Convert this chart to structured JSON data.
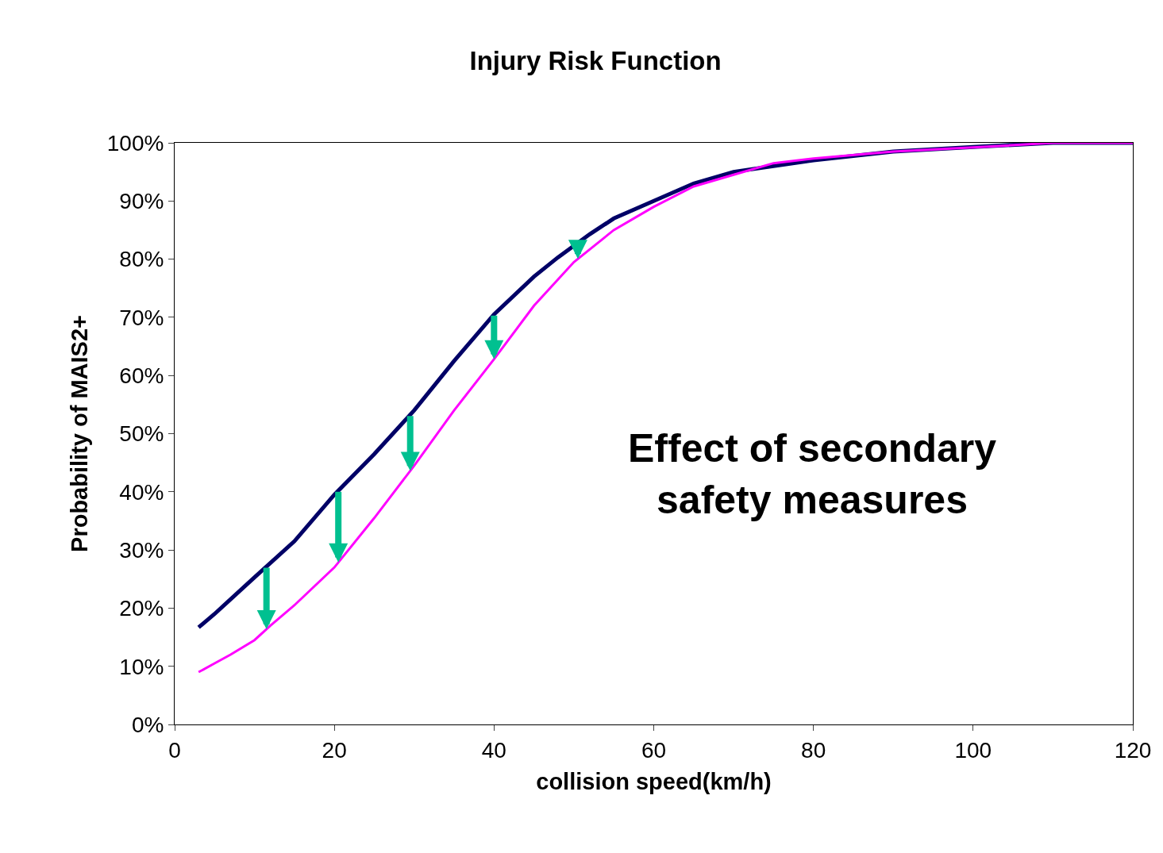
{
  "chart_data": {
    "type": "line",
    "title": "Injury Risk Function",
    "xlabel": "collision speed(km/h)",
    "ylabel": "Probability of MAIS2+",
    "annotations": [
      "Effect of secondary\nsafety measures"
    ],
    "series": [
      {
        "color": "#000066",
        "x": [
          3,
          5,
          10,
          15,
          20,
          25,
          30,
          35,
          40,
          45,
          48,
          52,
          55,
          60,
          65,
          70,
          75,
          80,
          90,
          100,
          110,
          120
        ],
        "values": [
          16.7,
          19,
          25.3,
          31.5,
          39.5,
          46.5,
          54,
          62.5,
          70.5,
          77,
          80.3,
          84.3,
          87,
          90,
          93,
          95,
          96,
          97,
          98.5,
          99.3,
          100,
          100
        ]
      },
      {
        "color": "#ff00ff",
        "x": [
          3,
          5,
          7,
          10,
          12,
          15,
          20,
          25,
          30,
          35,
          40,
          45,
          50,
          55,
          60,
          65,
          70,
          75,
          80,
          90,
          100,
          110,
          120
        ],
        "values": [
          9,
          10.5,
          12,
          14.5,
          17,
          20.5,
          27,
          35.5,
          44.5,
          54,
          62.8,
          72,
          79.5,
          85,
          89,
          92.5,
          94.5,
          96.5,
          97.3,
          98.5,
          99.2,
          100,
          100
        ]
      }
    ],
    "xlim": [
      0,
      120
    ],
    "xticks": [
      0,
      20,
      40,
      60,
      80,
      100,
      120
    ],
    "ylim": [
      0,
      100
    ],
    "yticks": [
      {
        "value": 0,
        "label": "0%"
      },
      {
        "value": 10,
        "label": "10%"
      },
      {
        "value": 20,
        "label": "20%"
      },
      {
        "value": 30,
        "label": "30%"
      },
      {
        "value": 40,
        "label": "40%"
      },
      {
        "value": 50,
        "label": "50%"
      },
      {
        "value": 60,
        "label": "60%"
      },
      {
        "value": 70,
        "label": "70%"
      },
      {
        "value": 80,
        "label": "80%"
      },
      {
        "value": 90,
        "label": "90%"
      },
      {
        "value": 100,
        "label": "100%"
      }
    ],
    "legend": false,
    "marker": "none",
    "line_style": "solid"
  }
}
